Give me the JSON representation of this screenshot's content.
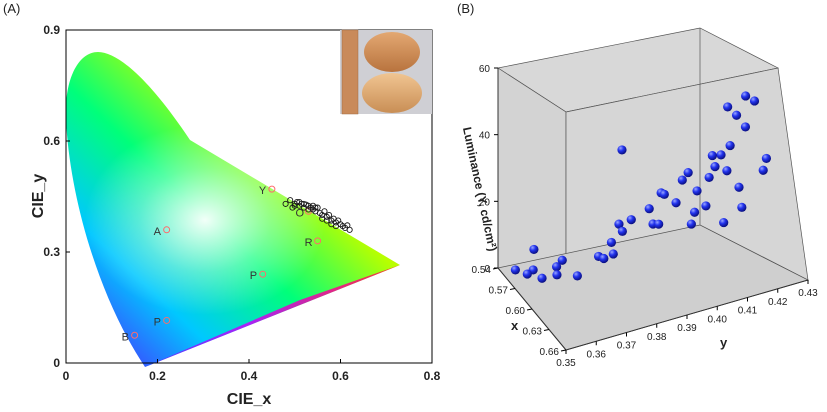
{
  "panels": {
    "a_label": "(A)",
    "b_label": "(B)"
  },
  "chart_data": [
    {
      "type": "scatter",
      "panel": "A",
      "xlabel": "CIE_x",
      "ylabel": "CIE_y",
      "xlim": [
        0,
        0.8
      ],
      "ylim": [
        0,
        0.9
      ],
      "xticks": [
        "0",
        "0.2",
        "0.4",
        "0.6",
        "0.8"
      ],
      "yticks": [
        "0",
        "0.3",
        "0.6",
        "0.9"
      ],
      "reference_points": [
        {
          "label": "Y",
          "x": 0.45,
          "y": 0.47
        },
        {
          "label": "A",
          "x": 0.22,
          "y": 0.36
        },
        {
          "label": "O",
          "x": 0.53,
          "y": 0.41
        },
        {
          "label": "R",
          "x": 0.55,
          "y": 0.33
        },
        {
          "label": "P",
          "x": 0.43,
          "y": 0.24
        },
        {
          "label": "B",
          "x": 0.15,
          "y": 0.075
        },
        {
          "label": "P",
          "x": 0.22,
          "y": 0.115
        }
      ],
      "samples": [
        [
          0.48,
          0.43
        ],
        [
          0.49,
          0.44
        ],
        [
          0.5,
          0.43
        ],
        [
          0.505,
          0.435
        ],
        [
          0.51,
          0.425
        ],
        [
          0.515,
          0.43
        ],
        [
          0.52,
          0.42
        ],
        [
          0.525,
          0.428
        ],
        [
          0.53,
          0.425
        ],
        [
          0.535,
          0.42
        ],
        [
          0.54,
          0.415
        ],
        [
          0.545,
          0.41
        ],
        [
          0.55,
          0.42
        ],
        [
          0.555,
          0.405
        ],
        [
          0.56,
          0.4
        ],
        [
          0.565,
          0.41
        ],
        [
          0.57,
          0.395
        ],
        [
          0.575,
          0.4
        ],
        [
          0.58,
          0.385
        ],
        [
          0.585,
          0.39
        ],
        [
          0.59,
          0.38
        ],
        [
          0.595,
          0.385
        ],
        [
          0.6,
          0.375
        ],
        [
          0.605,
          0.37
        ],
        [
          0.61,
          0.365
        ],
        [
          0.615,
          0.372
        ],
        [
          0.62,
          0.36
        ],
        [
          0.5,
          0.425
        ],
        [
          0.51,
          0.435
        ],
        [
          0.52,
          0.43
        ],
        [
          0.53,
          0.415
        ],
        [
          0.54,
          0.425
        ],
        [
          0.495,
          0.42
        ],
        [
          0.545,
          0.42
        ],
        [
          0.56,
          0.39
        ],
        [
          0.57,
          0.385
        ],
        [
          0.58,
          0.375
        ],
        [
          0.59,
          0.37
        ]
      ]
    },
    {
      "type": "scatter",
      "panel": "B",
      "xlabel": "x",
      "ylabel": "y",
      "zlabel": "Luminance (Y, cd/cm²)",
      "xticks": [
        "0.54",
        "0.57",
        "0.60",
        "0.63",
        "0.66"
      ],
      "yticks": [
        "0.35",
        "0.36",
        "0.37",
        "0.38",
        "0.39",
        "0.40",
        "0.41",
        "0.42",
        "0.43"
      ],
      "zticks": [
        "0",
        "20",
        "40",
        "60"
      ],
      "xlim": [
        0.54,
        0.66
      ],
      "ylim": [
        0.35,
        0.43
      ],
      "zlim": [
        0,
        60
      ],
      "points": [
        [
          0.56,
          0.352,
          3
        ],
        [
          0.565,
          0.355,
          2
        ],
        [
          0.57,
          0.356,
          4
        ],
        [
          0.575,
          0.358,
          2
        ],
        [
          0.58,
          0.362,
          3
        ],
        [
          0.59,
          0.36,
          8
        ],
        [
          0.6,
          0.365,
          6
        ],
        [
          0.6,
          0.372,
          10
        ],
        [
          0.61,
          0.375,
          12
        ],
        [
          0.62,
          0.37,
          14
        ],
        [
          0.61,
          0.378,
          18
        ],
        [
          0.615,
          0.38,
          22
        ],
        [
          0.62,
          0.385,
          25
        ],
        [
          0.62,
          0.39,
          28
        ],
        [
          0.625,
          0.388,
          30
        ],
        [
          0.63,
          0.392,
          27
        ],
        [
          0.625,
          0.395,
          32
        ],
        [
          0.63,
          0.396,
          35
        ],
        [
          0.635,
          0.398,
          30
        ],
        [
          0.64,
          0.4,
          26
        ],
        [
          0.635,
          0.402,
          33
        ],
        [
          0.63,
          0.404,
          38
        ],
        [
          0.64,
          0.405,
          40
        ],
        [
          0.645,
          0.406,
          36
        ],
        [
          0.64,
          0.408,
          42
        ],
        [
          0.645,
          0.41,
          30
        ],
        [
          0.65,
          0.41,
          25
        ],
        [
          0.65,
          0.404,
          22
        ],
        [
          0.62,
          0.4,
          20
        ],
        [
          0.625,
          0.398,
          18
        ],
        [
          0.6,
          0.39,
          15
        ],
        [
          0.62,
          0.376,
          45
        ],
        [
          0.625,
          0.41,
          50
        ],
        [
          0.63,
          0.412,
          48
        ],
        [
          0.635,
          0.414,
          45
        ],
        [
          0.64,
          0.42,
          35
        ],
        [
          0.645,
          0.418,
          33
        ],
        [
          0.55,
          0.36,
          5
        ],
        [
          0.58,
          0.38,
          8
        ],
        [
          0.63,
          0.415,
          53
        ],
        [
          0.635,
          0.417,
          52
        ],
        [
          0.64,
          0.403,
          37
        ],
        [
          0.6,
          0.36,
          12
        ],
        [
          0.62,
          0.375,
          23
        ],
        [
          0.61,
          0.39,
          17
        ]
      ]
    }
  ]
}
